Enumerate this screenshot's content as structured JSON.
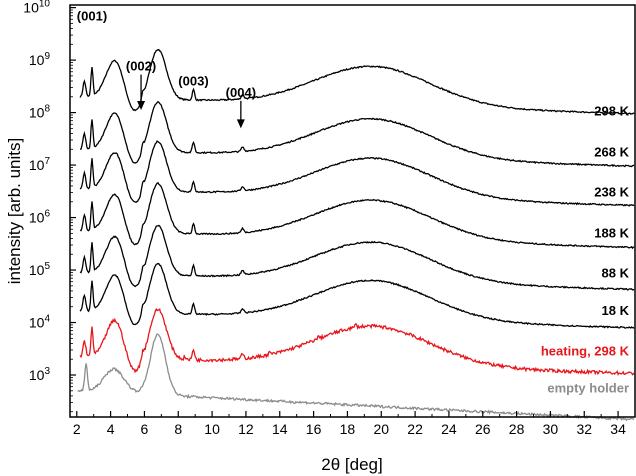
{
  "chart_data": {
    "type": "line",
    "title": "",
    "xlabel": "2θ [deg]",
    "ylabel": "intensity [arb. units]",
    "xscale": "linear",
    "yscale": "log",
    "xlim": [
      1.6,
      35
    ],
    "ylim_exp": [
      2.2,
      10.05
    ],
    "x_ticks": [
      2,
      4,
      6,
      8,
      10,
      12,
      14,
      16,
      18,
      20,
      22,
      24,
      26,
      28,
      30,
      32,
      34
    ],
    "y_ticks": [
      {
        "base": "10",
        "exp": "3",
        "value": 3
      },
      {
        "base": "10",
        "exp": "4",
        "value": 4
      },
      {
        "base": "10",
        "exp": "5",
        "value": 5
      },
      {
        "base": "10",
        "exp": "6",
        "value": 6
      },
      {
        "base": "10",
        "exp": "7",
        "value": 7
      },
      {
        "base": "10",
        "exp": "8",
        "value": 8
      },
      {
        "base": "10",
        "exp": "9",
        "value": 9
      },
      {
        "base": "10",
        "exp": "10",
        "value": 10
      }
    ],
    "series": [
      {
        "name": "298 K",
        "color": "#000000",
        "offset_log10": 8.3,
        "label_log10": 8.02,
        "noise": 0.025
      },
      {
        "name": "268 K",
        "color": "#000000",
        "offset_log10": 7.3,
        "label_log10": 7.24,
        "noise": 0.025
      },
      {
        "name": "238 K",
        "color": "#000000",
        "offset_log10": 6.55,
        "label_log10": 6.48,
        "noise": 0.025
      },
      {
        "name": "188 K",
        "color": "#000000",
        "offset_log10": 5.75,
        "label_log10": 5.7,
        "noise": 0.025
      },
      {
        "name": "88 K",
        "color": "#000000",
        "offset_log10": 4.95,
        "label_log10": 4.93,
        "noise": 0.025
      },
      {
        "name": "18 K",
        "color": "#000000",
        "offset_log10": 4.22,
        "label_log10": 4.22,
        "noise": 0.025
      },
      {
        "name": "heating, 298 K",
        "color": "#e8161b",
        "offset_log10": 3.35,
        "label_log10": 3.45,
        "noise": 0.06
      },
      {
        "name": "empty holder",
        "color": "#8c8c8c",
        "offset_log10": 2.7,
        "label_log10": 2.74,
        "noise": 0.045
      }
    ],
    "annotations": [
      {
        "text": "(001)",
        "x": 2.9,
        "y_log10": 9.75
      },
      {
        "text": "(002)",
        "x": 5.8,
        "y_log10": 8.8,
        "arrow_to_log10": 8.05
      },
      {
        "text": "(003)",
        "x": 8.9,
        "y_log10": 8.52
      },
      {
        "text": "(004)",
        "x": 11.7,
        "y_log10": 8.3,
        "arrow_to_log10": 7.7
      }
    ]
  }
}
